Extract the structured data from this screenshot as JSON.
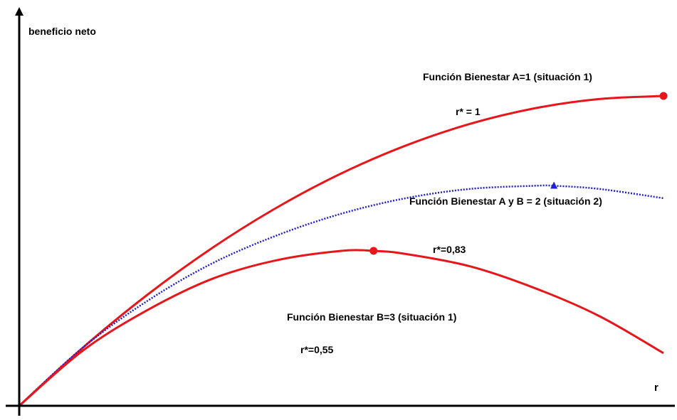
{
  "chart_data": {
    "type": "line",
    "ylabel": "beneficio neto",
    "xlabel": "r",
    "xlim": [
      0,
      1
    ],
    "ylim": [
      0,
      1.1
    ],
    "grid": false,
    "series": [
      {
        "name": "Función Bienestar A=1 (situación 1)",
        "optimum_label": "r* = 1",
        "optimum_x": 1,
        "color": "#e8161b",
        "style": "solid",
        "marker": "circle",
        "x": [
          0,
          0.1,
          0.2,
          0.3,
          0.4,
          0.5,
          0.6,
          0.7,
          0.8,
          0.9,
          1.0
        ],
        "y": [
          0,
          0.19,
          0.36,
          0.51,
          0.64,
          0.75,
          0.84,
          0.91,
          0.96,
          0.99,
          1.0
        ]
      },
      {
        "name": "Función Bienestar A y B = 2  (situación 2)",
        "optimum_label": "r*=0,83",
        "optimum_x": 0.83,
        "color": "#1f1fd1",
        "style": "dotted",
        "marker": "triangle",
        "x": [
          0,
          0.1,
          0.2,
          0.3,
          0.4,
          0.5,
          0.6,
          0.7,
          0.8,
          0.83,
          0.9,
          1.0
        ],
        "y": [
          0,
          0.19,
          0.34,
          0.46,
          0.55,
          0.62,
          0.67,
          0.7,
          0.71,
          0.71,
          0.7,
          0.67
        ]
      },
      {
        "name": "Función Bienestar B=3  (situación 1)",
        "optimum_label": "r*=0,55",
        "optimum_x": 0.55,
        "color": "#e8161b",
        "style": "solid",
        "marker": "circle",
        "x": [
          0,
          0.1,
          0.2,
          0.3,
          0.4,
          0.5,
          0.55,
          0.6,
          0.7,
          0.8,
          0.9,
          1.0
        ],
        "y": [
          0,
          0.18,
          0.31,
          0.41,
          0.47,
          0.5,
          0.5,
          0.49,
          0.45,
          0.38,
          0.29,
          0.17
        ]
      }
    ]
  }
}
